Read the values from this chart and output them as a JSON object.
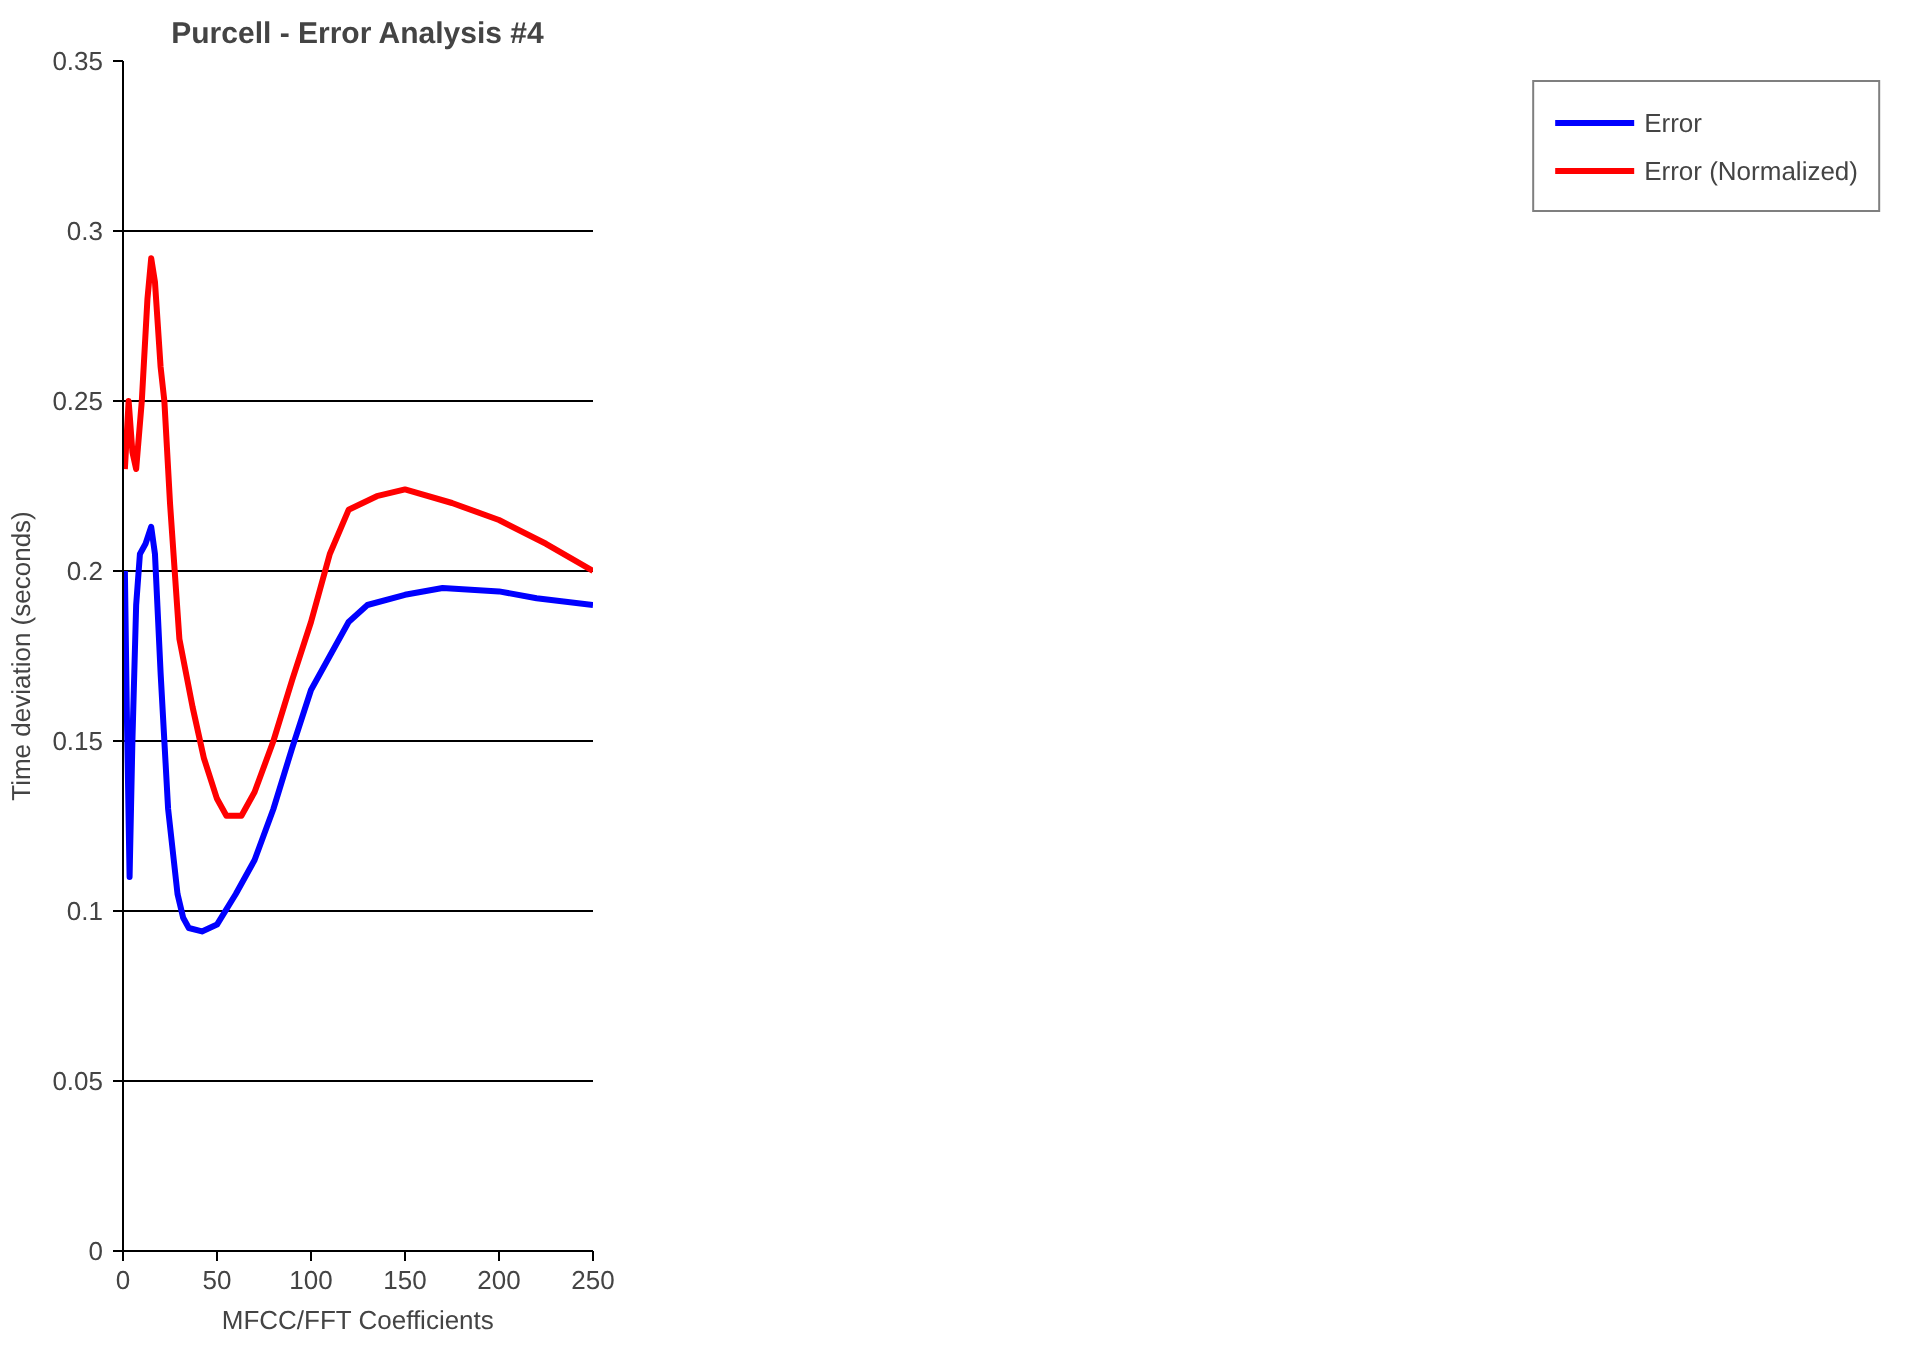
{
  "chart_data": {
    "type": "line",
    "title": "Purcell - Error Analysis #4",
    "xlabel": "MFCC/FFT Coefficients",
    "ylabel": "Time deviation (seconds)",
    "xlim": [
      0,
      250
    ],
    "xticks": [
      0,
      50,
      100,
      150,
      200,
      250
    ],
    "ylim": [
      0,
      0.35
    ],
    "yticks": [
      0,
      0.05,
      0.1,
      0.15,
      0.2,
      0.25,
      0.3,
      0.35
    ],
    "grid": "y",
    "legend": "right",
    "marker": "none",
    "line_style": "solid",
    "series": [
      {
        "name": "Error",
        "color": "#0000ff",
        "x": [
          1,
          2,
          3.5,
          5,
          7,
          9,
          12,
          15,
          17,
          20,
          24,
          27,
          29,
          32,
          35,
          42,
          50,
          60,
          70,
          80,
          90,
          100,
          110,
          120,
          130,
          150,
          170,
          200,
          220,
          250
        ],
        "values": [
          0.2,
          0.16,
          0.11,
          0.15,
          0.19,
          0.205,
          0.208,
          0.213,
          0.205,
          0.17,
          0.13,
          0.115,
          0.105,
          0.098,
          0.095,
          0.094,
          0.096,
          0.105,
          0.115,
          0.13,
          0.148,
          0.165,
          0.175,
          0.185,
          0.19,
          0.193,
          0.195,
          0.194,
          0.192,
          0.19
        ]
      },
      {
        "name": "Error (Normalized)",
        "color": "#ff0000",
        "x": [
          1,
          3,
          5,
          7,
          10,
          13,
          15,
          17,
          20,
          22,
          25,
          30,
          37,
          43,
          50,
          55,
          63,
          70,
          80,
          90,
          100,
          110,
          120,
          135,
          150,
          175,
          200,
          225,
          250
        ],
        "values": [
          0.23,
          0.25,
          0.235,
          0.23,
          0.25,
          0.28,
          0.292,
          0.285,
          0.26,
          0.25,
          0.22,
          0.18,
          0.16,
          0.145,
          0.133,
          0.128,
          0.128,
          0.135,
          0.15,
          0.168,
          0.185,
          0.205,
          0.218,
          0.222,
          0.224,
          0.22,
          0.215,
          0.208,
          0.2
        ]
      }
    ]
  }
}
